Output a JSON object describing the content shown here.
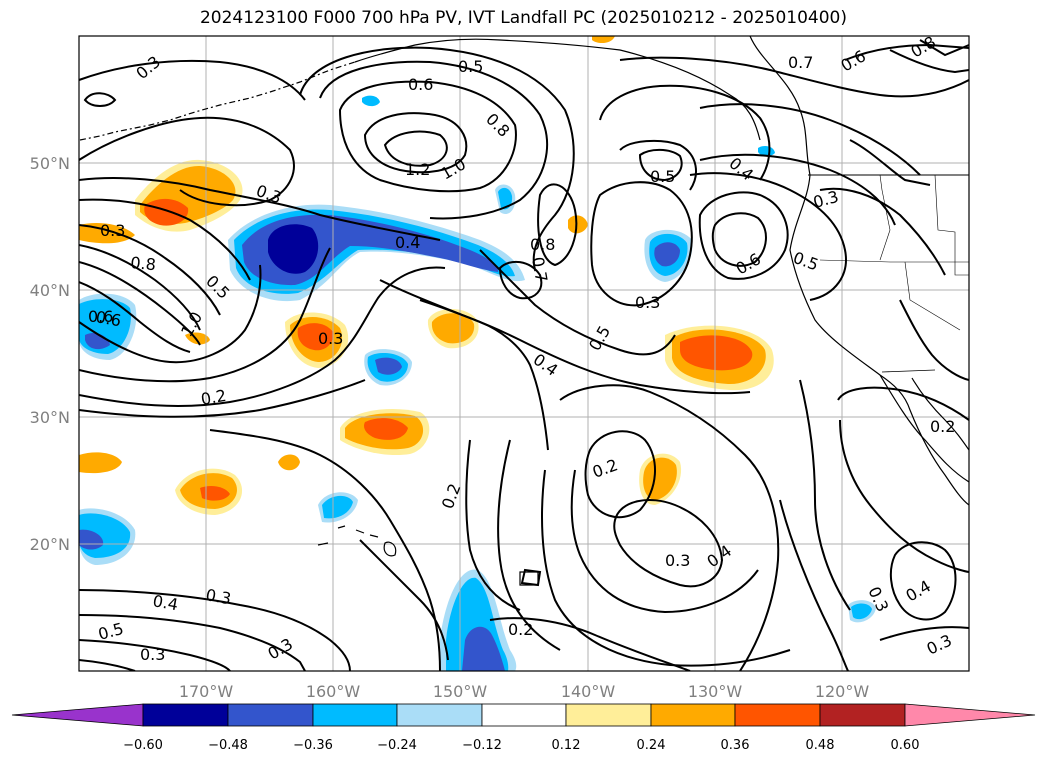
{
  "title": "2024123100 F000 700 hPa PV, IVT Landfall PC (2025010212 - 2025010400)",
  "colors": {
    "neg_fill": [
      "#9933cc",
      "#000099",
      "#3355cc",
      "#00bbff",
      "#aaddf7"
    ],
    "pos_fill": [
      "#ffee99",
      "#ffaa00",
      "#ff5500",
      "#b22222",
      "#ff88aa"
    ],
    "contour": "#000000",
    "coast": "#000000",
    "grid": "#b0b0b0"
  },
  "chart_data": {
    "type": "map",
    "lon_range": [
      -180,
      -110
    ],
    "lat_range": [
      10,
      60
    ],
    "lon_ticks": [
      {
        "value": -170,
        "label": "170°W"
      },
      {
        "value": -160,
        "label": "160°W"
      },
      {
        "value": -150,
        "label": "150°W"
      },
      {
        "value": -140,
        "label": "140°W"
      },
      {
        "value": -130,
        "label": "130°W"
      },
      {
        "value": -120,
        "label": "120°W"
      }
    ],
    "lat_ticks": [
      {
        "value": 50,
        "label": "50°N"
      },
      {
        "value": 40,
        "label": "40°N"
      },
      {
        "value": 30,
        "label": "30°N"
      },
      {
        "value": 20,
        "label": "20°N"
      }
    ],
    "grid": true,
    "colorbar": {
      "orientation": "horizontal",
      "extend": "both",
      "levels": [
        -0.6,
        -0.48,
        -0.36,
        -0.24,
        -0.12,
        0.12,
        0.24,
        0.36,
        0.48,
        0.6
      ],
      "tick_labels": [
        "−0.60",
        "−0.48",
        "−0.36",
        "−0.24",
        "−0.12",
        "0.12",
        "0.24",
        "0.36",
        "0.48",
        "0.60"
      ]
    },
    "shaded_features": [
      {
        "lon": -161,
        "lat": 43.5,
        "value": -0.6
      },
      {
        "lon": -133,
        "lat": 35.5,
        "value": 0.45
      },
      {
        "lon": -165,
        "lat": 46,
        "value": 0.4
      },
      {
        "lon": -157.5,
        "lat": 36,
        "value": 0.35
      },
      {
        "lon": -152.5,
        "lat": 29,
        "value": 0.35
      },
      {
        "lon": -170,
        "lat": 24,
        "value": 0.3
      },
      {
        "lon": -147,
        "lat": 15,
        "value": -0.45
      },
      {
        "lon": -135,
        "lat": 42,
        "value": -0.4
      },
      {
        "lon": -178.5,
        "lat": 37.5,
        "value": -0.4
      },
      {
        "lon": -178.5,
        "lat": 20,
        "value": -0.4
      },
      {
        "lon": -152.5,
        "lat": 34.5,
        "value": -0.4
      }
    ],
    "contour_labels": [
      "0.3",
      "0.6",
      "0.5",
      "0.8",
      "1.2",
      "1.0",
      "0.3",
      "0.4",
      "0.8",
      "0.7",
      "0.5",
      "0.6",
      "0.4",
      "0.3",
      "0.6",
      "0.5",
      "0.3",
      "0.8",
      "0.6",
      "1.0",
      "0.3",
      "0.5",
      "0.4",
      "0.3",
      "0.5",
      "0.2",
      "0.2",
      "0.2",
      "0.3",
      "0.4",
      "0.4",
      "0.3",
      "0.3",
      "0.5",
      "0.3",
      "0.2",
      "0.3",
      "0.4",
      "0.3",
      "0.2",
      "0.7",
      "0.6",
      "0.8"
    ]
  }
}
